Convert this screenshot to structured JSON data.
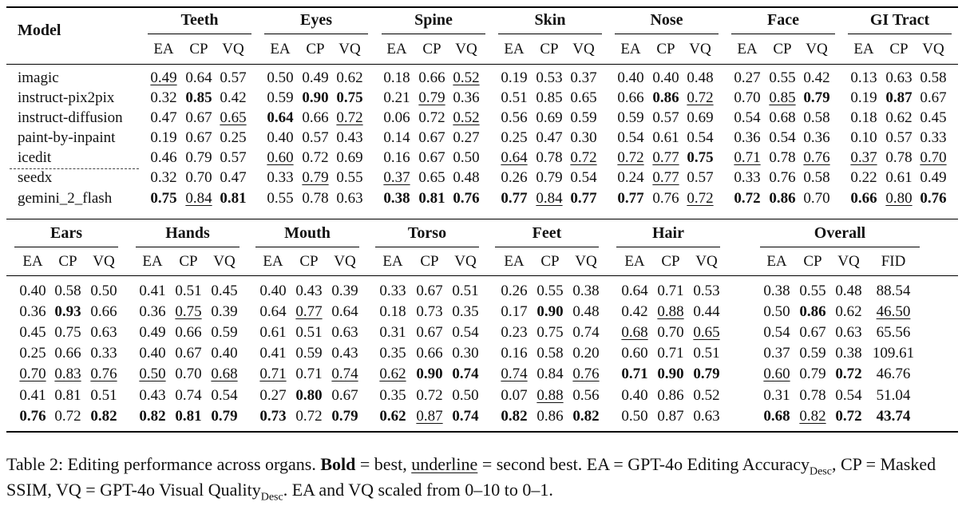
{
  "table1": {
    "model_header": "Model",
    "groups": [
      "Teeth",
      "Eyes",
      "Spine",
      "Skin",
      "Nose",
      "Face",
      "GI Tract"
    ],
    "subheaders": [
      "EA",
      "CP",
      "VQ"
    ],
    "rows": [
      {
        "model": "imagic",
        "cells": [
          "0.49",
          "0.64",
          "0.57",
          "0.50",
          "0.49",
          "0.62",
          "0.18",
          "0.66",
          "0.52",
          "0.19",
          "0.53",
          "0.37",
          "0.40",
          "0.40",
          "0.48",
          "0.27",
          "0.55",
          "0.42",
          "0.13",
          "0.63",
          "0.58"
        ]
      },
      {
        "model": "instruct-pix2pix",
        "cells": [
          "0.32",
          "0.85",
          "0.42",
          "0.59",
          "0.90",
          "0.75",
          "0.21",
          "0.79",
          "0.36",
          "0.51",
          "0.85",
          "0.65",
          "0.66",
          "0.86",
          "0.72",
          "0.70",
          "0.85",
          "0.79",
          "0.19",
          "0.87",
          "0.67"
        ]
      },
      {
        "model": "instruct-diffusion",
        "cells": [
          "0.47",
          "0.67",
          "0.65",
          "0.64",
          "0.66",
          "0.72",
          "0.06",
          "0.72",
          "0.52",
          "0.56",
          "0.69",
          "0.59",
          "0.59",
          "0.57",
          "0.69",
          "0.54",
          "0.68",
          "0.58",
          "0.18",
          "0.62",
          "0.45"
        ]
      },
      {
        "model": "paint-by-inpaint",
        "cells": [
          "0.19",
          "0.67",
          "0.25",
          "0.40",
          "0.57",
          "0.43",
          "0.14",
          "0.67",
          "0.27",
          "0.25",
          "0.47",
          "0.30",
          "0.54",
          "0.61",
          "0.54",
          "0.36",
          "0.54",
          "0.36",
          "0.10",
          "0.57",
          "0.33"
        ]
      },
      {
        "model": "icedit",
        "cells": [
          "0.46",
          "0.79",
          "0.57",
          "0.60",
          "0.72",
          "0.69",
          "0.16",
          "0.67",
          "0.50",
          "0.64",
          "0.78",
          "0.72",
          "0.72",
          "0.77",
          "0.75",
          "0.71",
          "0.78",
          "0.76",
          "0.37",
          "0.78",
          "0.70"
        ]
      },
      {
        "model": "seedx",
        "cells": [
          "0.32",
          "0.70",
          "0.47",
          "0.33",
          "0.79",
          "0.55",
          "0.37",
          "0.65",
          "0.48",
          "0.26",
          "0.79",
          "0.54",
          "0.24",
          "0.77",
          "0.57",
          "0.33",
          "0.76",
          "0.58",
          "0.22",
          "0.61",
          "0.49"
        ]
      },
      {
        "model": "gemini_2_flash",
        "cells": [
          "0.75",
          "0.84",
          "0.81",
          "0.55",
          "0.78",
          "0.63",
          "0.38",
          "0.81",
          "0.76",
          "0.77",
          "0.84",
          "0.77",
          "0.77",
          "0.76",
          "0.72",
          "0.72",
          "0.86",
          "0.70",
          "0.66",
          "0.80",
          "0.76"
        ]
      }
    ],
    "bold": [
      [
        1,
        1
      ],
      [
        1,
        4
      ],
      [
        1,
        5
      ],
      [
        1,
        13
      ],
      [
        1,
        17
      ],
      [
        1,
        19
      ],
      [
        2,
        3
      ],
      [
        4,
        14
      ],
      [
        6,
        0
      ],
      [
        6,
        2
      ],
      [
        6,
        6
      ],
      [
        6,
        7
      ],
      [
        6,
        8
      ],
      [
        6,
        9
      ],
      [
        6,
        11
      ],
      [
        6,
        12
      ],
      [
        6,
        15
      ],
      [
        6,
        16
      ],
      [
        6,
        18
      ],
      [
        6,
        20
      ]
    ],
    "underline": [
      [
        0,
        0
      ],
      [
        0,
        8
      ],
      [
        1,
        7
      ],
      [
        1,
        14
      ],
      [
        1,
        16
      ],
      [
        2,
        2
      ],
      [
        2,
        5
      ],
      [
        2,
        8
      ],
      [
        4,
        3
      ],
      [
        4,
        9
      ],
      [
        4,
        11
      ],
      [
        4,
        12
      ],
      [
        4,
        13
      ],
      [
        4,
        15
      ],
      [
        4,
        17
      ],
      [
        4,
        18
      ],
      [
        4,
        20
      ],
      [
        5,
        4
      ],
      [
        5,
        6
      ],
      [
        5,
        13
      ],
      [
        6,
        1
      ],
      [
        6,
        10
      ],
      [
        6,
        14
      ],
      [
        6,
        19
      ]
    ]
  },
  "table2": {
    "groups": [
      "Ears",
      "Hands",
      "Mouth",
      "Torso",
      "Feet",
      "Hair",
      "Overall"
    ],
    "subheaders": [
      "EA",
      "CP",
      "VQ"
    ],
    "overall_subheaders": [
      "EA",
      "CP",
      "VQ",
      "FID"
    ],
    "rows": [
      [
        "0.40",
        "0.58",
        "0.50",
        "0.41",
        "0.51",
        "0.45",
        "0.40",
        "0.43",
        "0.39",
        "0.33",
        "0.67",
        "0.51",
        "0.26",
        "0.55",
        "0.38",
        "0.64",
        "0.71",
        "0.53",
        "0.38",
        "0.55",
        "0.48",
        "88.54"
      ],
      [
        "0.36",
        "0.93",
        "0.66",
        "0.36",
        "0.75",
        "0.39",
        "0.64",
        "0.77",
        "0.64",
        "0.18",
        "0.73",
        "0.35",
        "0.17",
        "0.90",
        "0.48",
        "0.42",
        "0.88",
        "0.44",
        "0.50",
        "0.86",
        "0.62",
        "46.50"
      ],
      [
        "0.45",
        "0.75",
        "0.63",
        "0.49",
        "0.66",
        "0.59",
        "0.61",
        "0.51",
        "0.63",
        "0.31",
        "0.67",
        "0.54",
        "0.23",
        "0.75",
        "0.74",
        "0.68",
        "0.70",
        "0.65",
        "0.54",
        "0.67",
        "0.63",
        "65.56"
      ],
      [
        "0.25",
        "0.66",
        "0.33",
        "0.40",
        "0.67",
        "0.40",
        "0.41",
        "0.59",
        "0.43",
        "0.35",
        "0.66",
        "0.30",
        "0.16",
        "0.58",
        "0.20",
        "0.60",
        "0.71",
        "0.51",
        "0.37",
        "0.59",
        "0.38",
        "109.61"
      ],
      [
        "0.70",
        "0.83",
        "0.76",
        "0.50",
        "0.70",
        "0.68",
        "0.71",
        "0.71",
        "0.74",
        "0.62",
        "0.90",
        "0.74",
        "0.74",
        "0.84",
        "0.76",
        "0.71",
        "0.90",
        "0.79",
        "0.60",
        "0.79",
        "0.72",
        "46.76"
      ],
      [
        "0.41",
        "0.81",
        "0.51",
        "0.43",
        "0.74",
        "0.54",
        "0.27",
        "0.80",
        "0.67",
        "0.35",
        "0.72",
        "0.50",
        "0.07",
        "0.88",
        "0.56",
        "0.40",
        "0.86",
        "0.52",
        "0.31",
        "0.78",
        "0.54",
        "51.04"
      ],
      [
        "0.76",
        "0.72",
        "0.82",
        "0.82",
        "0.81",
        "0.79",
        "0.73",
        "0.72",
        "0.79",
        "0.62",
        "0.87",
        "0.74",
        "0.82",
        "0.86",
        "0.82",
        "0.50",
        "0.87",
        "0.63",
        "0.68",
        "0.82",
        "0.72",
        "43.74"
      ]
    ],
    "bold": [
      [
        1,
        1
      ],
      [
        1,
        19
      ],
      [
        5,
        7
      ],
      [
        4,
        10
      ],
      [
        4,
        11
      ],
      [
        1,
        13
      ],
      [
        4,
        15
      ],
      [
        4,
        16
      ],
      [
        4,
        17
      ],
      [
        4,
        20
      ],
      [
        6,
        0
      ],
      [
        6,
        2
      ],
      [
        6,
        3
      ],
      [
        6,
        4
      ],
      [
        6,
        5
      ],
      [
        6,
        6
      ],
      [
        6,
        8
      ],
      [
        6,
        9
      ],
      [
        6,
        11
      ],
      [
        6,
        12
      ],
      [
        6,
        14
      ],
      [
        6,
        18
      ],
      [
        6,
        20
      ],
      [
        6,
        21
      ]
    ],
    "underline": [
      [
        4,
        0
      ],
      [
        4,
        1
      ],
      [
        4,
        2
      ],
      [
        4,
        3
      ],
      [
        4,
        5
      ],
      [
        1,
        4
      ],
      [
        4,
        6
      ],
      [
        1,
        7
      ],
      [
        4,
        8
      ],
      [
        4,
        9
      ],
      [
        6,
        10
      ],
      [
        4,
        12
      ],
      [
        5,
        13
      ],
      [
        4,
        14
      ],
      [
        2,
        15
      ],
      [
        1,
        16
      ],
      [
        2,
        17
      ],
      [
        4,
        18
      ],
      [
        6,
        19
      ],
      [
        1,
        21
      ]
    ]
  },
  "caption": {
    "part1": "Table 2: Editing performance across organs.",
    "bold_word": "Bold",
    "part2": " = best, ",
    "underline_word": "underline",
    "part3": " = second best. EA = GPT-4o Editing Accuracy",
    "sub1": "Desc",
    "part4": ", CP = Masked SSIM, VQ = GPT-4o Visual Quality",
    "sub2": "Desc",
    "part5": ". EA and VQ scaled from 0–10 to 0–1."
  }
}
